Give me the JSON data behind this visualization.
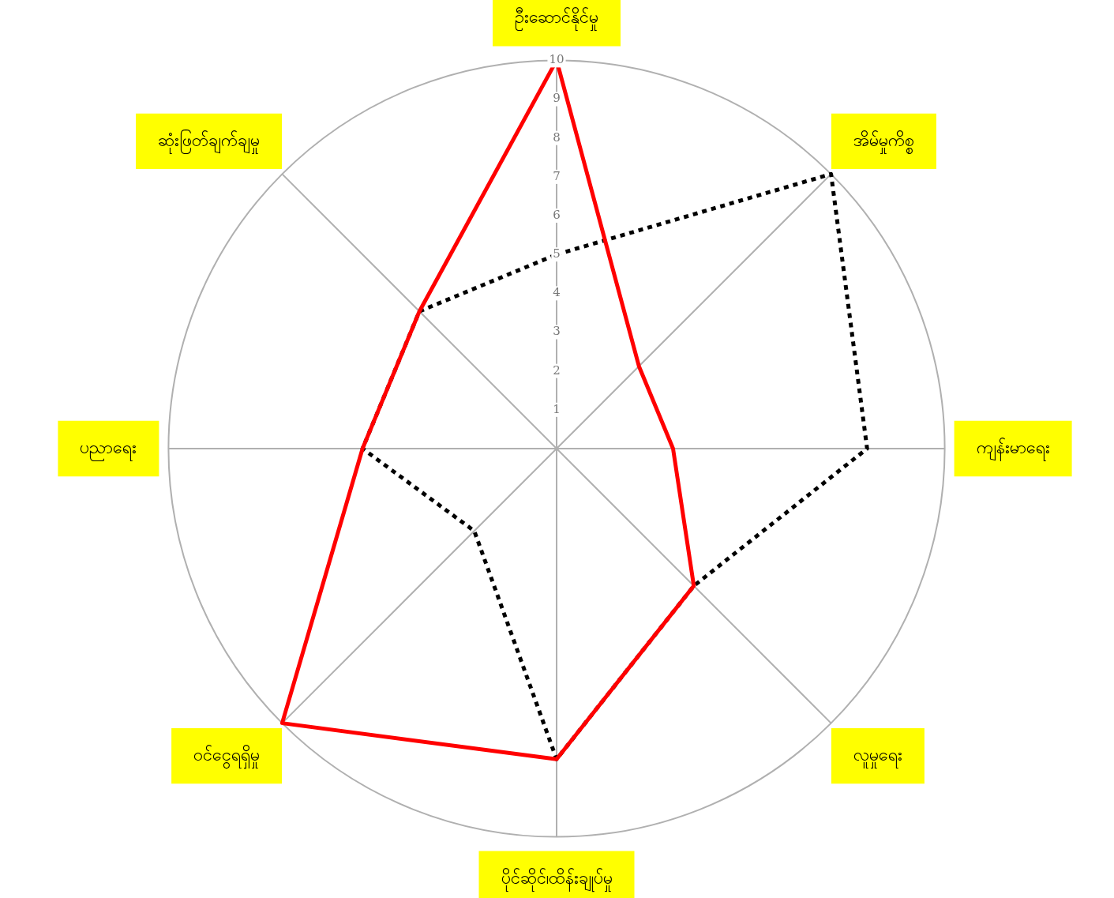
{
  "chart_data": {
    "type": "radar",
    "categories": [
      "ဦးဆောင်နိုင်မှု",
      "အိမ်မှုကိစ္စ",
      "ကျန်းမာရေး",
      "လူမှုရေး",
      "ပိုင်ဆိုင်၊ထိန်းချုပ်မှု",
      "ဝင်ငွေရရှိမှု",
      "ပညာရေး",
      "ဆုံးဖြတ်ချက်ချမှု"
    ],
    "series": [
      {
        "color": "#ff0000",
        "line_style": "solid",
        "values": [
          10,
          3,
          3,
          5,
          8,
          10,
          5,
          5
        ]
      },
      {
        "color": "#000000",
        "line_style": "dotted",
        "values": [
          5,
          10,
          8,
          5,
          8,
          3,
          5,
          5
        ]
      }
    ],
    "ylim": [
      0,
      10
    ],
    "yticks": [
      1,
      2,
      3,
      4,
      5,
      6,
      7,
      8,
      9,
      10
    ],
    "marker": "none"
  }
}
